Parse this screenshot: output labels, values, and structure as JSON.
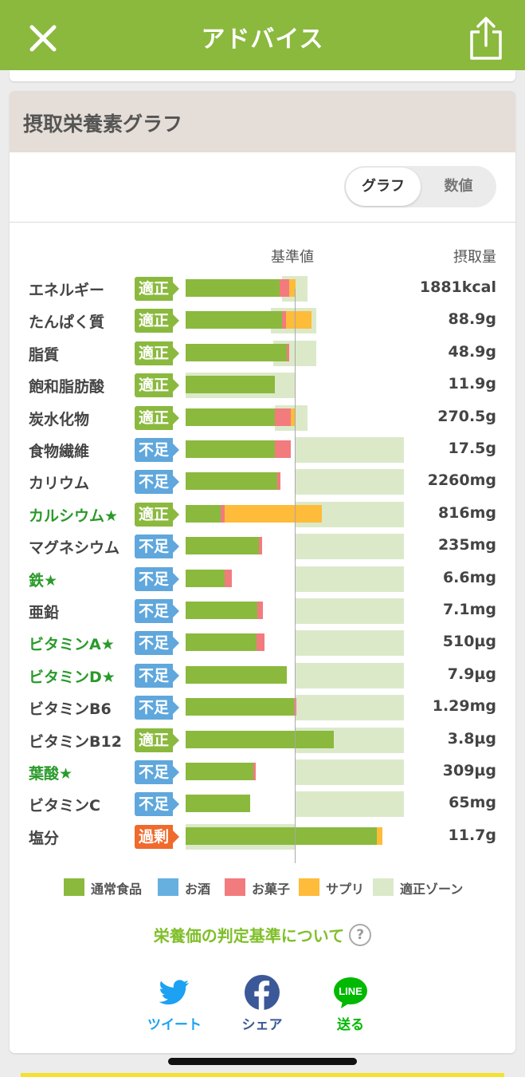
{
  "app_bar": {
    "title": "アドバイス",
    "close_icon": "close-icon",
    "share_icon": "share-icon"
  },
  "section": {
    "title": "摂取栄養素グラフ",
    "toggle": {
      "graph": "グラフ",
      "numeric": "数値",
      "selected": "グラフ"
    },
    "columns": {
      "reference": "基準値",
      "intake": "摂取量"
    }
  },
  "status_colors": {
    "適正": "#8ab93e",
    "不足": "#5fa7dc",
    "過剰": "#ef6a2c"
  },
  "chart_data": {
    "type": "bar",
    "stacked": true,
    "reference_scale": 1.0,
    "scale_note": "intake relative to standard value (基準値 = 1.0)",
    "series_names": [
      "通常食品",
      "お酒",
      "お菓子",
      "サプリ"
    ],
    "nutrients": [
      {
        "name": "エネルギー",
        "star": false,
        "status": "適正",
        "intake": "1881kcal",
        "zone": [
          0.88,
          1.12
        ],
        "food": 0.86,
        "alcohol": 0,
        "sweets": 0.09,
        "supplement": 0.06
      },
      {
        "name": "たんぱく質",
        "star": false,
        "status": "適正",
        "intake": "88.9g",
        "zone": [
          0.78,
          1.2
        ],
        "food": 0.88,
        "alcohol": 0,
        "sweets": 0.04,
        "supplement": 0.23
      },
      {
        "name": "脂質",
        "star": false,
        "status": "適正",
        "intake": "48.9g",
        "zone": [
          0.8,
          1.2
        ],
        "food": 0.93,
        "alcohol": 0,
        "sweets": 0.01,
        "supplement": 0
      },
      {
        "name": "飽和脂肪酸",
        "star": false,
        "status": "適正",
        "intake": "11.9g",
        "zone": [
          0,
          1.0
        ],
        "food": 0.82,
        "alcohol": 0,
        "sweets": 0,
        "supplement": 0
      },
      {
        "name": "炭水化物",
        "star": false,
        "status": "適正",
        "intake": "270.5g",
        "zone": [
          0.82,
          1.12
        ],
        "food": 0.82,
        "alcohol": 0,
        "sweets": 0.14,
        "supplement": 0.04
      },
      {
        "name": "食物繊維",
        "star": false,
        "status": "不足",
        "intake": "17.5g",
        "zone": [
          1.0,
          2.0
        ],
        "food": 0.82,
        "alcohol": 0,
        "sweets": 0.14,
        "supplement": 0
      },
      {
        "name": "カリウム",
        "star": false,
        "status": "不足",
        "intake": "2260mg",
        "zone": [
          1.0,
          2.0
        ],
        "food": 0.84,
        "alcohol": 0,
        "sweets": 0.03,
        "supplement": 0
      },
      {
        "name": "カルシウム★",
        "star": true,
        "status": "適正",
        "intake": "816mg",
        "zone": [
          1.0,
          2.0
        ],
        "food": 0.32,
        "alcohol": 0,
        "sweets": 0.04,
        "supplement": 0.89
      },
      {
        "name": "マグネシウム",
        "star": false,
        "status": "不足",
        "intake": "235mg",
        "zone": [
          1.0,
          2.0
        ],
        "food": 0.67,
        "alcohol": 0,
        "sweets": 0.03,
        "supplement": 0
      },
      {
        "name": "鉄★",
        "star": true,
        "status": "不足",
        "intake": "6.6mg",
        "zone": [
          1.0,
          2.0
        ],
        "food": 0.36,
        "alcohol": 0,
        "sweets": 0.06,
        "supplement": 0
      },
      {
        "name": "亜鉛",
        "star": false,
        "status": "不足",
        "intake": "7.1mg",
        "zone": [
          1.0,
          2.0
        ],
        "food": 0.66,
        "alcohol": 0,
        "sweets": 0.05,
        "supplement": 0
      },
      {
        "name": "ビタミンA★",
        "star": true,
        "status": "不足",
        "intake": "510µg",
        "zone": [
          1.0,
          2.0
        ],
        "food": 0.65,
        "alcohol": 0,
        "sweets": 0.07,
        "supplement": 0
      },
      {
        "name": "ビタミンD★",
        "star": true,
        "status": "不足",
        "intake": "7.9µg",
        "zone": [
          1.0,
          2.0
        ],
        "food": 0.93,
        "alcohol": 0,
        "sweets": 0,
        "supplement": 0
      },
      {
        "name": "ビタミンB6",
        "star": false,
        "status": "不足",
        "intake": "1.29mg",
        "zone": [
          1.0,
          2.0
        ],
        "food": 0.99,
        "alcohol": 0,
        "sweets": 0.01,
        "supplement": 0
      },
      {
        "name": "ビタミンB12",
        "star": false,
        "status": "適正",
        "intake": "3.8µg",
        "zone": [
          1.0,
          2.0
        ],
        "food": 1.36,
        "alcohol": 0,
        "sweets": 0,
        "supplement": 0
      },
      {
        "name": "葉酸★",
        "star": true,
        "status": "不足",
        "intake": "309µg",
        "zone": [
          1.0,
          2.0
        ],
        "food": 0.62,
        "alcohol": 0,
        "sweets": 0.02,
        "supplement": 0
      },
      {
        "name": "ビタミンC",
        "star": false,
        "status": "不足",
        "intake": "65mg",
        "zone": [
          1.0,
          2.0
        ],
        "food": 0.59,
        "alcohol": 0,
        "sweets": 0,
        "supplement": 0
      },
      {
        "name": "塩分",
        "star": false,
        "status": "過剰",
        "intake": "11.7g",
        "zone": [
          0,
          1.0
        ],
        "food": 1.75,
        "alcohol": 0,
        "sweets": 0,
        "supplement": 0.05
      }
    ]
  },
  "legend": [
    {
      "label": "通常食品",
      "color": "#8ab93e"
    },
    {
      "label": "お酒",
      "color": "#66b0e0"
    },
    {
      "label": "お菓子",
      "color": "#f27b7e"
    },
    {
      "label": "サプリ",
      "color": "#ffbb3a"
    },
    {
      "label": "適正ゾーン",
      "color": "#dbe9c9"
    }
  ],
  "criteria_link": {
    "label": "栄養価の判定基準について",
    "help_icon": "?"
  },
  "sns": {
    "twitter": {
      "label": "ツイート",
      "color": "#1da1f2"
    },
    "facebook": {
      "label": "シェア",
      "color": "#3b5998"
    },
    "line": {
      "label": "送る",
      "color": "#00b900"
    }
  }
}
